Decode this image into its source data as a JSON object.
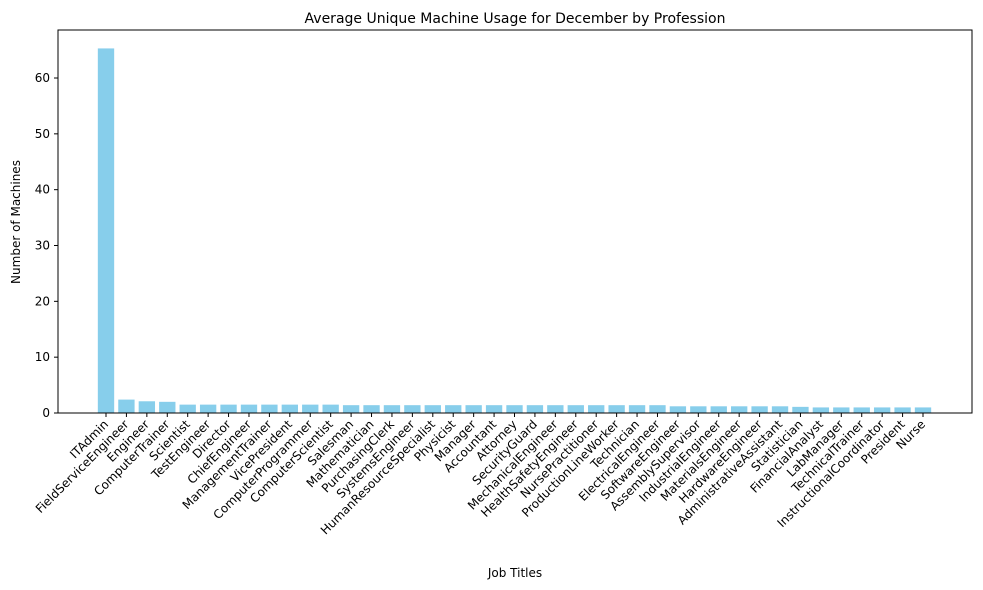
{
  "chart_data": {
    "type": "bar",
    "title": "Average Unique Machine Usage for December by Profession",
    "xlabel": "Job Titles",
    "ylabel": "Number of Machines",
    "ylim": [
      0,
      68.6
    ],
    "yticks": [
      0,
      10,
      20,
      30,
      40,
      50,
      60
    ],
    "grid": false,
    "bar_color": "#87ceeb",
    "categories": [
      "ITAdmin",
      "FieldServiceEngineer",
      "Engineer",
      "ComputerTrainer",
      "Scientist",
      "TestEngineer",
      "Director",
      "ChiefEngineer",
      "ManagementTrainer",
      "VicePresident",
      "ComputerProgrammer",
      "ComputerScientist",
      "Salesman",
      "Mathematician",
      "PurchasingClerk",
      "SystemsEngineer",
      "HumanResourceSpecialist",
      "Physicist",
      "Manager",
      "Accountant",
      "Attorney",
      "SecurityGuard",
      "MechanicalEngineer",
      "HealthSafetyEngineer",
      "NursePractitioner",
      "ProductionLineWorker",
      "Technician",
      "ElectricalEngineer",
      "SoftwareEngineer",
      "AssemblySupervisor",
      "IndustrialEngineer",
      "MaterialsEngineer",
      "HardwareEngineer",
      "AdministrativeAssistant",
      "Statistician",
      "FinancialAnalyst",
      "LabManager",
      "TechnicalTrainer",
      "InstructionalCoordinator",
      "President",
      "Nurse"
    ],
    "values": [
      65.3,
      2.4,
      2.1,
      2.0,
      1.5,
      1.5,
      1.5,
      1.5,
      1.5,
      1.5,
      1.5,
      1.5,
      1.4,
      1.4,
      1.4,
      1.4,
      1.4,
      1.4,
      1.4,
      1.4,
      1.4,
      1.4,
      1.4,
      1.4,
      1.4,
      1.4,
      1.4,
      1.4,
      1.2,
      1.2,
      1.2,
      1.2,
      1.2,
      1.2,
      1.1,
      1.0,
      1.0,
      1.0,
      1.0,
      1.0,
      1.0
    ]
  }
}
